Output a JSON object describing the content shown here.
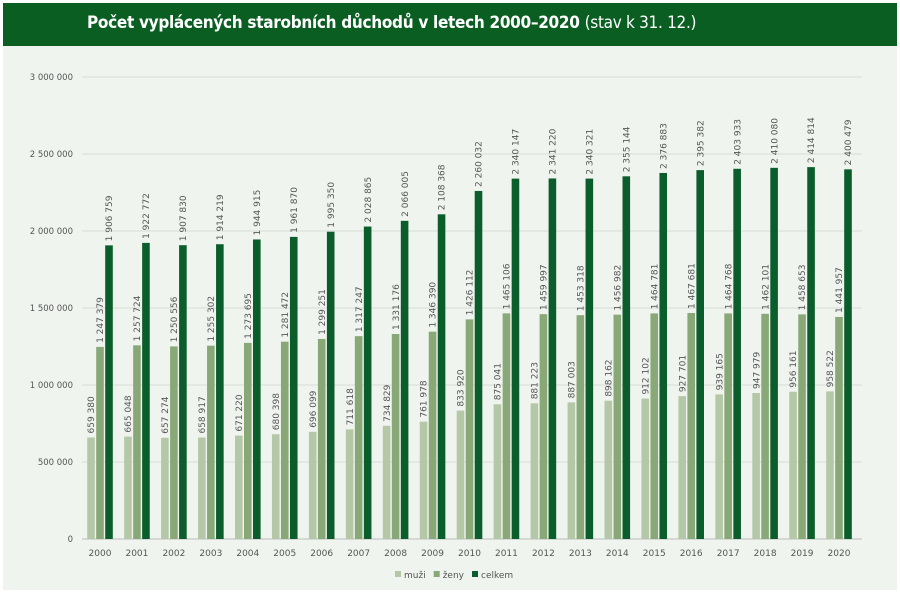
{
  "chart_data": {
    "type": "bar",
    "title": "Počet vyplácených starobních důchodů v letech 2000–2020",
    "subtitle": "(stav k 31. 12.)",
    "xlabel": "",
    "ylabel": "",
    "ylim": [
      0,
      3000000
    ],
    "yticks": [
      0,
      500000,
      1000000,
      1500000,
      2000000,
      2500000,
      3000000
    ],
    "ytick_labels": [
      "0",
      "500 000",
      "1 000 000",
      "1 500 000",
      "2 000 000",
      "2 500 000",
      "3 000 000"
    ],
    "grid": true,
    "legend_position": "bottom-center",
    "categories": [
      "2000",
      "2001",
      "2002",
      "2003",
      "2004",
      "2005",
      "2006",
      "2007",
      "2008",
      "2009",
      "2010",
      "2011",
      "2012",
      "2013",
      "2014",
      "2015",
      "2016",
      "2017",
      "2018",
      "2019",
      "2020"
    ],
    "series": [
      {
        "name": "muži",
        "color": "#b4c8a8",
        "values": [
          659380,
          665048,
          657274,
          658917,
          671220,
          680398,
          696099,
          711618,
          734829,
          761978,
          833920,
          875041,
          881223,
          887003,
          898162,
          912102,
          927701,
          939165,
          947979,
          956161,
          958522
        ]
      },
      {
        "name": "ženy",
        "color": "#88a878",
        "values": [
          1247379,
          1257724,
          1250556,
          1255302,
          1273695,
          1281472,
          1299251,
          1317247,
          1331176,
          1346390,
          1426112,
          1465106,
          1459997,
          1453318,
          1456982,
          1464781,
          1467681,
          1464768,
          1462101,
          1458653,
          1441957
        ]
      },
      {
        "name": "celkem",
        "color": "#0b5e2c",
        "values": [
          1906759,
          1922772,
          1907830,
          1914219,
          1944915,
          1961870,
          1995350,
          2028865,
          2066005,
          2108368,
          2260032,
          2340147,
          2341220,
          2340321,
          2355144,
          2376883,
          2395382,
          2403933,
          2410080,
          2414814,
          2400479
        ]
      }
    ]
  }
}
